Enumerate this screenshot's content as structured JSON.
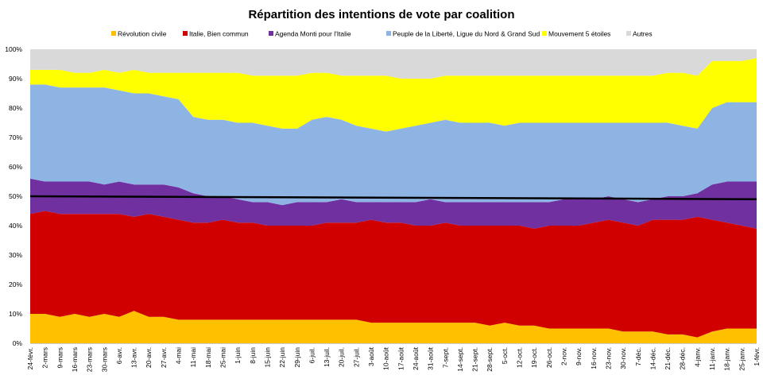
{
  "chart_data": {
    "type": "area",
    "stacked": true,
    "title": "Répartition des intentions de vote par coalition",
    "xlabel": "",
    "ylabel": "",
    "ylim": [
      0,
      100
    ],
    "y_ticks": [
      "0%",
      "10%",
      "20%",
      "30%",
      "40%",
      "50%",
      "60%",
      "70%",
      "80%",
      "90%",
      "100%"
    ],
    "legend_position": "top",
    "categories": [
      "24-févr.",
      "2-mars",
      "9-mars",
      "16-mars",
      "23-mars",
      "30-mars",
      "6-avr.",
      "13-avr.",
      "20-avr.",
      "27-avr.",
      "4-mai",
      "11-mai",
      "18-mai",
      "25-mai",
      "1-juin",
      "8-juin",
      "15-juin",
      "22-juin",
      "29-juin",
      "6-juil.",
      "13-juil.",
      "20-juil.",
      "27-juil.",
      "3-août",
      "10-août",
      "17-août",
      "24-août",
      "31-août",
      "7-sept.",
      "14-sept.",
      "21-sept.",
      "28-sept.",
      "5-oct.",
      "12-oct.",
      "19-oct.",
      "26-oct.",
      "2-nov.",
      "9-nov.",
      "16-nov.",
      "23-nov.",
      "30-nov.",
      "7-déc.",
      "14-déc.",
      "21-déc.",
      "28-déc.",
      "4-janv.",
      "11-janv.",
      "18-janv.",
      "25-janv.",
      "1-févr."
    ],
    "series": [
      {
        "name": "Révolution civile",
        "color": "#FFC000",
        "values": [
          10,
          10,
          9,
          10,
          9,
          10,
          9,
          11,
          9,
          9,
          8,
          8,
          8,
          8,
          8,
          8,
          8,
          8,
          8,
          8,
          8,
          8,
          8,
          7,
          7,
          7,
          7,
          7,
          7,
          7,
          7,
          6,
          7,
          6,
          6,
          5,
          5,
          5,
          5,
          5,
          4,
          4,
          4,
          3,
          3,
          2,
          4,
          5,
          5,
          5
        ]
      },
      {
        "name": "Italie, Bien commun",
        "color": "#D00000",
        "values": [
          34,
          35,
          35,
          34,
          35,
          34,
          35,
          32,
          35,
          34,
          34,
          33,
          33,
          34,
          33,
          33,
          32,
          32,
          32,
          32,
          33,
          33,
          33,
          35,
          34,
          34,
          33,
          33,
          34,
          33,
          33,
          34,
          33,
          34,
          33,
          35,
          35,
          35,
          36,
          37,
          37,
          36,
          38,
          39,
          39,
          41,
          38,
          36,
          35,
          34
        ]
      },
      {
        "name": "Agenda Monti pour l'Italie",
        "color": "#7030A0",
        "values": [
          12,
          10,
          11,
          11,
          11,
          10,
          11,
          11,
          10,
          11,
          11,
          10,
          9,
          8,
          8,
          7,
          8,
          7,
          8,
          8,
          7,
          8,
          7,
          6,
          7,
          7,
          8,
          9,
          7,
          8,
          8,
          8,
          8,
          8,
          9,
          8,
          9,
          9,
          8,
          8,
          8,
          8,
          7,
          8,
          8,
          8,
          12,
          14,
          15,
          16
        ]
      },
      {
        "name": "Peuple de la Liberté, Ligue du Nord & Grand Sud",
        "color": "#8EB4E3",
        "values": [
          32,
          33,
          32,
          32,
          32,
          33,
          31,
          31,
          31,
          30,
          30,
          26,
          26,
          26,
          26,
          27,
          26,
          26,
          25,
          28,
          29,
          27,
          26,
          25,
          24,
          25,
          26,
          26,
          28,
          27,
          27,
          27,
          26,
          27,
          27,
          27,
          26,
          26,
          26,
          25,
          26,
          27,
          26,
          25,
          24,
          22,
          26,
          27,
          27,
          27
        ]
      },
      {
        "name": "Mouvement 5 étoiles",
        "color": "#FFFF00",
        "values": [
          5,
          5,
          6,
          5,
          5,
          6,
          6,
          8,
          7,
          8,
          9,
          15,
          16,
          16,
          17,
          16,
          17,
          18,
          18,
          16,
          15,
          15,
          17,
          18,
          19,
          17,
          16,
          15,
          15,
          16,
          16,
          16,
          17,
          16,
          16,
          16,
          16,
          16,
          16,
          16,
          16,
          16,
          16,
          17,
          18,
          18,
          16,
          14,
          14,
          15
        ]
      },
      {
        "name": "Autres",
        "color": "#D9D9D9",
        "values": [
          7,
          7,
          7,
          8,
          8,
          7,
          8,
          7,
          8,
          8,
          8,
          8,
          8,
          8,
          8,
          9,
          9,
          9,
          9,
          8,
          8,
          9,
          9,
          9,
          9,
          10,
          10,
          10,
          9,
          9,
          9,
          9,
          9,
          9,
          9,
          9,
          9,
          9,
          9,
          9,
          9,
          9,
          9,
          8,
          8,
          9,
          4,
          4,
          4,
          3
        ]
      }
    ],
    "trend_line": {
      "color": "#000000",
      "values": [
        50,
        49
      ]
    }
  }
}
